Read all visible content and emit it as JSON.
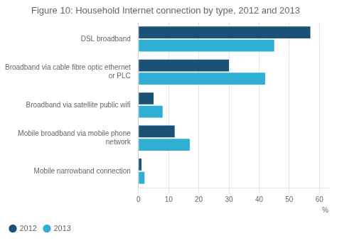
{
  "chart_data": {
    "type": "bar",
    "title": "Figure 10: Household Internet connection by type, 2012 and 2013",
    "orientation": "horizontal",
    "categories": [
      "DSL broadband",
      "Broadband via cable fibre optic ethernet\nor PLC",
      "Broadband via satellite public wifi",
      "Mobile broadband via mobile phone\nnetwork",
      "Mobile narrowband connection"
    ],
    "series": [
      {
        "name": "2012",
        "color": "#1a5276",
        "values": [
          57,
          30,
          5,
          12,
          1
        ]
      },
      {
        "name": "2013",
        "color": "#2eafd3",
        "values": [
          45,
          42,
          8,
          17,
          2
        ]
      }
    ],
    "xlabel": "%",
    "xlim": [
      0,
      63
    ],
    "xticks": [
      0,
      10,
      20,
      30,
      40,
      50,
      60
    ],
    "grid": true,
    "legend": "bottom"
  }
}
